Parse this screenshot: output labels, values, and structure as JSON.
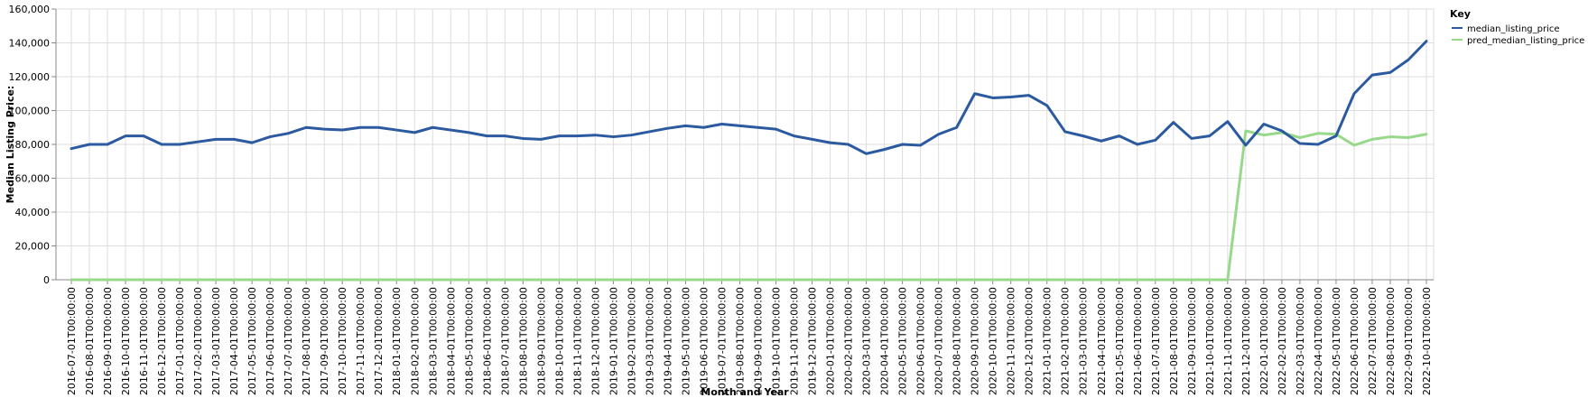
{
  "chart_data": {
    "type": "line",
    "xlabel": "Month and Year",
    "ylabel": "Median Listing Price:",
    "ylim": [
      0,
      160000
    ],
    "y_ticks": [
      0,
      20000,
      40000,
      60000,
      80000,
      100000,
      120000,
      140000,
      160000
    ],
    "y_tick_labels": [
      "0",
      "20,000",
      "40,000",
      "60,000",
      "80,000",
      "100,000",
      "120,000",
      "140,000",
      "160,000"
    ],
    "grid": true,
    "legend": {
      "title": "Key",
      "position": "top-right"
    },
    "x": [
      "2016-07-01T00:00:00",
      "2016-08-01T00:00:00",
      "2016-09-01T00:00:00",
      "2016-10-01T00:00:00",
      "2016-11-01T00:00:00",
      "2016-12-01T00:00:00",
      "2017-01-01T00:00:00",
      "2017-02-01T00:00:00",
      "2017-03-01T00:00:00",
      "2017-04-01T00:00:00",
      "2017-05-01T00:00:00",
      "2017-06-01T00:00:00",
      "2017-07-01T00:00:00",
      "2017-08-01T00:00:00",
      "2017-09-01T00:00:00",
      "2017-10-01T00:00:00",
      "2017-11-01T00:00:00",
      "2017-12-01T00:00:00",
      "2018-01-01T00:00:00",
      "2018-02-01T00:00:00",
      "2018-03-01T00:00:00",
      "2018-04-01T00:00:00",
      "2018-05-01T00:00:00",
      "2018-06-01T00:00:00",
      "2018-07-01T00:00:00",
      "2018-08-01T00:00:00",
      "2018-09-01T00:00:00",
      "2018-10-01T00:00:00",
      "2018-11-01T00:00:00",
      "2018-12-01T00:00:00",
      "2019-01-01T00:00:00",
      "2019-02-01T00:00:00",
      "2019-03-01T00:00:00",
      "2019-04-01T00:00:00",
      "2019-05-01T00:00:00",
      "2019-06-01T00:00:00",
      "2019-07-01T00:00:00",
      "2019-08-01T00:00:00",
      "2019-09-01T00:00:00",
      "2019-10-01T00:00:00",
      "2019-11-01T00:00:00",
      "2019-12-01T00:00:00",
      "2020-01-01T00:00:00",
      "2020-02-01T00:00:00",
      "2020-03-01T00:00:00",
      "2020-04-01T00:00:00",
      "2020-05-01T00:00:00",
      "2020-06-01T00:00:00",
      "2020-07-01T00:00:00",
      "2020-08-01T00:00:00",
      "2020-09-01T00:00:00",
      "2020-10-01T00:00:00",
      "2020-11-01T00:00:00",
      "2020-12-01T00:00:00",
      "2021-01-01T00:00:00",
      "2021-02-01T00:00:00",
      "2021-03-01T00:00:00",
      "2021-04-01T00:00:00",
      "2021-05-01T00:00:00",
      "2021-06-01T00:00:00",
      "2021-07-01T00:00:00",
      "2021-08-01T00:00:00",
      "2021-09-01T00:00:00",
      "2021-10-01T00:00:00",
      "2021-11-01T00:00:00",
      "2021-12-01T00:00:00",
      "2022-01-01T00:00:00",
      "2022-02-01T00:00:00",
      "2022-03-01T00:00:00",
      "2022-04-01T00:00:00",
      "2022-05-01T00:00:00",
      "2022-06-01T00:00:00",
      "2022-07-01T00:00:00",
      "2022-08-01T00:00:00",
      "2022-09-01T00:00:00",
      "2022-10-01T00:00:00"
    ],
    "series": [
      {
        "name": "median_listing_price",
        "color": "#2c5aa0",
        "values": [
          77500,
          80000,
          80000,
          85000,
          85000,
          80000,
          80000,
          81500,
          83000,
          83000,
          81000,
          84500,
          86500,
          90000,
          89000,
          88500,
          90000,
          90000,
          88500,
          87000,
          90000,
          88500,
          87000,
          85000,
          85000,
          83500,
          83000,
          85000,
          85000,
          85500,
          84500,
          85500,
          87500,
          89500,
          91000,
          90000,
          92000,
          91000,
          90000,
          89000,
          85000,
          83000,
          81000,
          80000,
          74500,
          77000,
          80000,
          79500,
          86000,
          90000,
          110000,
          107500,
          108000,
          109000,
          103000,
          87500,
          85000,
          82000,
          85000,
          80000,
          82500,
          93000,
          83500,
          85000,
          93500,
          79500,
          92000,
          88000,
          80500,
          80000,
          85000,
          110000,
          121000,
          122500,
          130000,
          141000
        ]
      },
      {
        "name": "pred_median_listing_price",
        "color": "#98d88a",
        "values": [
          0,
          0,
          0,
          0,
          0,
          0,
          0,
          0,
          0,
          0,
          0,
          0,
          0,
          0,
          0,
          0,
          0,
          0,
          0,
          0,
          0,
          0,
          0,
          0,
          0,
          0,
          0,
          0,
          0,
          0,
          0,
          0,
          0,
          0,
          0,
          0,
          0,
          0,
          0,
          0,
          0,
          0,
          0,
          0,
          0,
          0,
          0,
          0,
          0,
          0,
          0,
          0,
          0,
          0,
          0,
          0,
          0,
          0,
          0,
          0,
          0,
          0,
          0,
          0,
          0,
          88000,
          85500,
          87000,
          84000,
          86500,
          86000,
          79500,
          83000,
          84500,
          84000,
          86000
        ]
      }
    ]
  }
}
